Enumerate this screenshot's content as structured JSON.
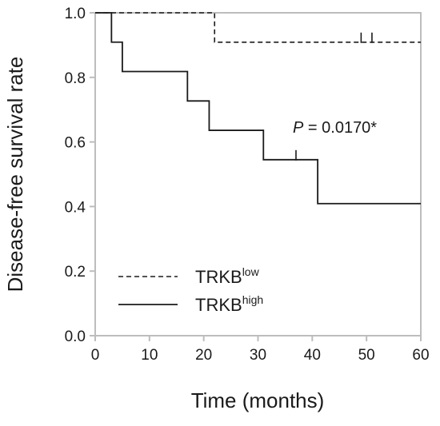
{
  "chart_data": {
    "type": "line",
    "subtype": "kaplan-meier step survival curve",
    "title": "",
    "xlabel": "Time (months)",
    "ylabel": "Disease-free survival rate",
    "xlim": [
      0,
      60
    ],
    "ylim": [
      0.0,
      1.0
    ],
    "xticks": [
      0,
      10,
      20,
      30,
      40,
      50,
      60
    ],
    "xtick_labels": [
      "0",
      "10",
      "20",
      "30",
      "40",
      "50",
      "60"
    ],
    "yticks": [
      0.0,
      0.2,
      0.4,
      0.6,
      0.8,
      1.0
    ],
    "ytick_labels": [
      "0.0",
      "0.2",
      "0.4",
      "0.6",
      "0.8",
      "1.0"
    ],
    "grid": false,
    "legend_position": "bottom-left",
    "annotation": {
      "italic": "P",
      "text": " = 0.0170*"
    },
    "series": [
      {
        "label_base": "TRKB",
        "label_sup": "low",
        "line_style": "dashed",
        "color": "#1a1a1a",
        "steps": [
          {
            "x": 0,
            "y": 1.0
          },
          {
            "x": 22,
            "y": 0.909
          }
        ],
        "end_x": 60,
        "censor_marks": [
          {
            "x": 49,
            "y": 0.909
          },
          {
            "x": 51,
            "y": 0.909
          }
        ]
      },
      {
        "label_base": "TRKB",
        "label_sup": "high",
        "line_style": "solid",
        "color": "#1a1a1a",
        "steps": [
          {
            "x": 0,
            "y": 1.0
          },
          {
            "x": 3,
            "y": 0.909
          },
          {
            "x": 5,
            "y": 0.818
          },
          {
            "x": 17,
            "y": 0.727
          },
          {
            "x": 21,
            "y": 0.636
          },
          {
            "x": 31,
            "y": 0.545
          },
          {
            "x": 41,
            "y": 0.409
          }
        ],
        "end_x": 60,
        "censor_marks": [
          {
            "x": 37,
            "y": 0.545
          }
        ]
      }
    ]
  }
}
